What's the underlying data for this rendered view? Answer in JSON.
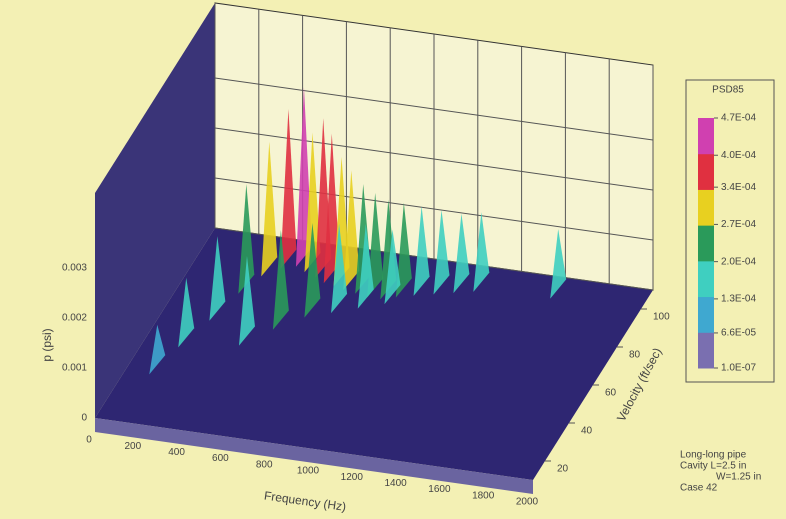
{
  "chart_data": {
    "type": "waterfall3d",
    "y_label": "p (psi)",
    "x_label": "Frequency (Hz)",
    "depth_label": "Velocity (ft/sec)",
    "xlim": [
      0,
      2000
    ],
    "xticks": [
      0,
      200,
      400,
      600,
      800,
      1000,
      1200,
      1400,
      1600,
      1800,
      2000
    ],
    "ylim": [
      0,
      0.0045
    ],
    "yticks": [
      0,
      0.001,
      0.002,
      0.003
    ],
    "depthlim": [
      10,
      110
    ],
    "depthticks": [
      20,
      40,
      60,
      80,
      100
    ],
    "peaks": {
      "x": [
        120,
        170,
        230,
        280,
        330,
        390,
        450,
        500,
        560,
        610,
        660,
        710,
        770,
        830,
        890,
        950,
        1020,
        1100,
        1180,
        1260,
        1600,
        420,
        520,
        620,
        720,
        820,
        920
      ],
      "depth": [
        40,
        55,
        70,
        85,
        95,
        100,
        102,
        100,
        98,
        96,
        95,
        94,
        93,
        92,
        92,
        94,
        96,
        98,
        100,
        102,
        104,
        60,
        70,
        78,
        82,
        86,
        90
      ],
      "values": [
        0.0008,
        0.0012,
        0.0015,
        0.002,
        0.0025,
        0.003,
        0.0034,
        0.0026,
        0.003,
        0.0028,
        0.0024,
        0.0022,
        0.002,
        0.0019,
        0.0018,
        0.0017,
        0.0016,
        0.0015,
        0.0014,
        0.0014,
        0.0012,
        0.0016,
        0.0018,
        0.0017,
        0.0016,
        0.0015,
        0.0013
      ]
    },
    "colorbar": {
      "title": "PSD85",
      "colors": [
        "#7a6fb0",
        "#3fa8d0",
        "#3fcfc0",
        "#2a9a5a",
        "#e8d020",
        "#e03040",
        "#d040b0"
      ],
      "ticks": [
        {
          "value": 1e-07,
          "label": "1.0E-07"
        },
        {
          "value": 6.6e-05,
          "label": "6.6E-05"
        },
        {
          "value": 0.00013,
          "label": "1.3E-04"
        },
        {
          "value": 0.0002,
          "label": "2.0E-04"
        },
        {
          "value": 0.00027,
          "label": "2.7E-04"
        },
        {
          "value": 0.00034,
          "label": "3.4E-04"
        },
        {
          "value": 0.0004,
          "label": "4.0E-04"
        },
        {
          "value": 0.00047,
          "label": "4.7E-04"
        }
      ]
    },
    "notes": [
      "Long-long pipe",
      "Cavity L=2.5 in",
      "W=1.25 in",
      "Case 42"
    ]
  }
}
